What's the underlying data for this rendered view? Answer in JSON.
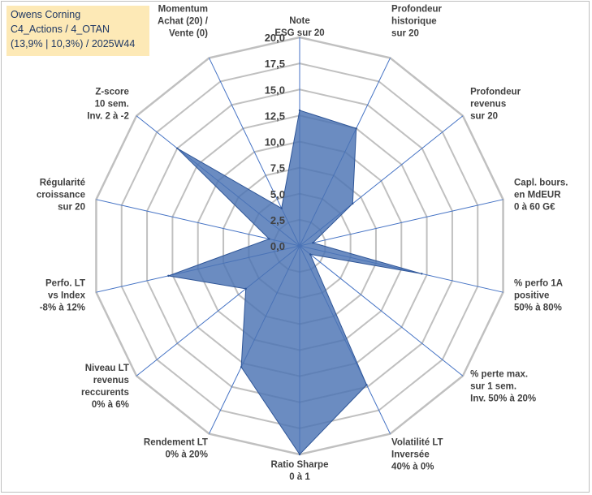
{
  "header": {
    "line1": "Owens Corning",
    "line2": "C4_Actions / 4_OTAN",
    "line3": "(13,9% | 10,3%) / 2025W44"
  },
  "colors": {
    "fill": "#4a73b3",
    "stroke": "#2e5597",
    "grid": "#c0c0c0",
    "axis": "#4472c4"
  },
  "chart_data": {
    "type": "radar",
    "ylim": [
      0,
      20
    ],
    "ticks": [
      "0,0",
      "2,5",
      "5,0",
      "7,5",
      "10,0",
      "12,5",
      "15,0",
      "17,5",
      "20,0"
    ],
    "axes": [
      {
        "label": [
          "Note",
          "ESG sur 20"
        ],
        "value": 13.0
      },
      {
        "label": [
          "Profondeur",
          "historique",
          "sur 20"
        ],
        "value": 12.5
      },
      {
        "label": [
          "Profondeur",
          "revenus",
          "sur 20"
        ],
        "value": 6.5
      },
      {
        "label": [
          "Capl. bours.",
          "en MdEUR",
          "0 à 60 G€"
        ],
        "value": 1.3
      },
      {
        "label": [
          "% perfo 1A",
          "positive",
          "50% à 80%"
        ],
        "value": 12.0
      },
      {
        "label": [
          "% perte max.",
          "sur 1 sem.",
          "Inv. 50% à 20%"
        ],
        "value": 1.3
      },
      {
        "label": [
          "Volatilité LT",
          "Inversée",
          "40% à 0%"
        ],
        "value": 14.8
      },
      {
        "label": [
          "Ratio Sharpe",
          "0 à 1"
        ],
        "value": 20.0
      },
      {
        "label": [
          "Rendement LT",
          "0% à 20%"
        ],
        "value": 12.9
      },
      {
        "label": [
          "Niveau LT",
          "revenus",
          "reccurents",
          "0% à 6%"
        ],
        "value": 6.6
      },
      {
        "label": [
          "Perfo. LT",
          "vs Index",
          "-8% à 12%"
        ],
        "value": 12.9
      },
      {
        "label": [
          "Régularité",
          "croissance",
          "sur 20"
        ],
        "value": 3.0
      },
      {
        "label": [
          "Z-score",
          "10 sem.",
          "Inv. 2 à -2"
        ],
        "value": 15.0
      },
      {
        "label": [
          "Momentum",
          "Achat (20) /",
          "Vente (0)"
        ],
        "value": 4.0
      }
    ]
  }
}
